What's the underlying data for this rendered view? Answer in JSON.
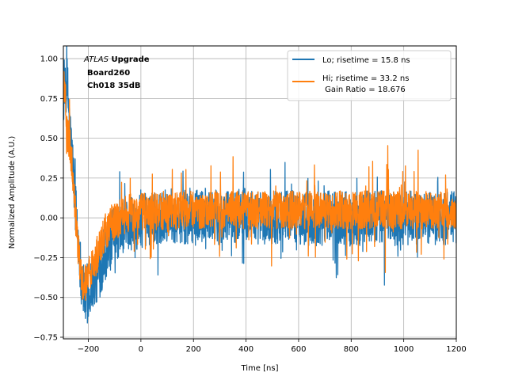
{
  "chart_data": {
    "type": "line",
    "title": "",
    "xlabel": "Time [ns]",
    "ylabel": "Normalized Amplitude (A.U.)",
    "xlim": [
      -295,
      1200
    ],
    "ylim": [
      -0.76,
      1.08
    ],
    "xticks": [
      -200,
      0,
      200,
      400,
      600,
      800,
      1000,
      1200
    ],
    "xtick_labels": [
      "−200",
      "0",
      "200",
      "400",
      "600",
      "800",
      "1000",
      "1200"
    ],
    "yticks": [
      -0.75,
      -0.5,
      -0.25,
      0.0,
      0.25,
      0.5,
      0.75,
      1.0
    ],
    "ytick_labels": [
      "−0.75",
      "−0.50",
      "−0.25",
      "0.00",
      "0.25",
      "0.50",
      "0.75",
      "1.00"
    ],
    "grid": true,
    "legend_position": "top-right",
    "annotation": {
      "line1_italic": "ATLAS",
      "line1_bold": " Upgrade",
      "line2": "Board260",
      "line3": "Ch018 35dB"
    },
    "series": [
      {
        "name": "Lo; risetime = 15.8 ns",
        "color": "#1f77b4",
        "x": [
          -290,
          -280,
          -270,
          -260,
          -250,
          -240,
          -230,
          -220,
          -210,
          -200,
          -190,
          -180,
          -170,
          -160,
          -150,
          -140,
          -130,
          -120,
          -110,
          -100,
          -80,
          -60,
          -40,
          -20,
          0,
          50,
          100,
          150,
          200,
          250,
          300,
          350,
          400,
          450,
          500,
          550,
          600,
          650,
          700,
          750,
          800,
          850,
          900,
          950,
          1000,
          1050,
          1100,
          1150,
          1200
        ],
        "y": [
          0.75,
          0.85,
          0.55,
          0.35,
          0.1,
          -0.1,
          -0.3,
          -0.45,
          -0.52,
          -0.5,
          -0.42,
          -0.4,
          -0.38,
          -0.35,
          -0.3,
          -0.25,
          -0.2,
          -0.15,
          -0.12,
          -0.1,
          -0.08,
          -0.06,
          -0.04,
          -0.03,
          -0.02,
          0.0,
          0.02,
          0.0,
          0.01,
          0.02,
          0.0,
          0.01,
          0.03,
          0.0,
          0.0,
          0.02,
          0.0,
          -0.02,
          0.0,
          0.01,
          -0.01,
          0.0,
          0.0,
          0.01,
          -0.01,
          0.0,
          0.0,
          0.0,
          0.0
        ],
        "noise": 0.17,
        "spike_max": 0.3
      },
      {
        "name": "Hi; risetime = 33.2 ns\n Gain Ratio = 18.676",
        "color": "#ff7f0e",
        "x": [
          -290,
          -280,
          -270,
          -260,
          -250,
          -240,
          -230,
          -220,
          -210,
          -200,
          -190,
          -180,
          -170,
          -160,
          -150,
          -140,
          -130,
          -120,
          -110,
          -100,
          -80,
          -60,
          -40,
          -20,
          0,
          50,
          100,
          150,
          200,
          250,
          300,
          350,
          400,
          450,
          500,
          550,
          600,
          650,
          700,
          750,
          800,
          850,
          900,
          950,
          1000,
          1050,
          1100,
          1150,
          1200
        ],
        "y": [
          0.8,
          0.55,
          0.45,
          0.3,
          0.05,
          -0.15,
          -0.35,
          -0.42,
          -0.4,
          -0.38,
          -0.33,
          -0.28,
          -0.25,
          -0.2,
          -0.15,
          -0.1,
          -0.07,
          -0.05,
          -0.03,
          -0.02,
          0.0,
          0.02,
          0.03,
          0.04,
          0.04,
          0.04,
          0.05,
          0.04,
          0.05,
          0.05,
          0.05,
          0.05,
          0.05,
          0.05,
          0.05,
          0.05,
          0.05,
          0.05,
          0.05,
          0.05,
          0.05,
          0.05,
          0.05,
          0.05,
          0.05,
          0.05,
          0.05,
          0.05,
          0.05
        ],
        "noise": 0.12,
        "spike_max": 0.3
      }
    ]
  }
}
